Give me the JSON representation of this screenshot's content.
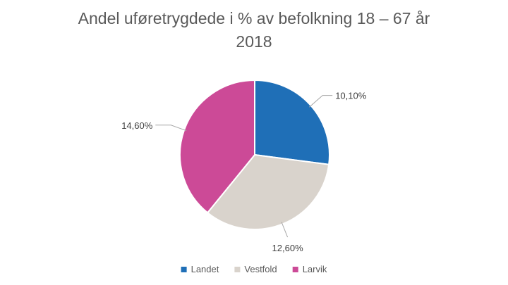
{
  "chart_data": {
    "type": "pie",
    "title_lines": [
      "Andel uføretrygdede i % av befolkning 18 – 67 år",
      "2018"
    ],
    "categories": [
      "Landet",
      "Vestfold",
      "Larvik"
    ],
    "values": [
      10.1,
      12.6,
      14.6
    ],
    "data_labels": [
      "10,10%",
      "12,60%",
      "14,60%"
    ],
    "colors": [
      "#1f6fb7",
      "#d9d3cc",
      "#cc4a97"
    ],
    "legend_position": "bottom",
    "start_angle_deg": 0,
    "direction": "clockwise"
  }
}
